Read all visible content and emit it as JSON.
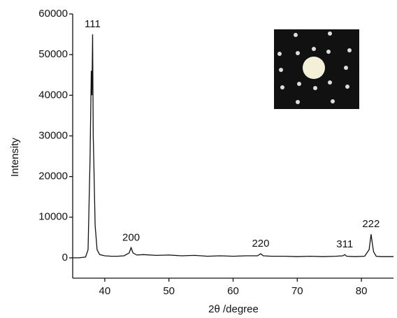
{
  "chart_data": {
    "type": "line",
    "x_label": "2θ /degree",
    "y_label": "Intensity",
    "xlim": [
      35,
      85
    ],
    "ylim": [
      -5000,
      60000
    ],
    "xticks": [
      40,
      50,
      60,
      70,
      80
    ],
    "yticks": [
      0,
      10000,
      20000,
      30000,
      40000,
      50000,
      60000
    ],
    "grid": false,
    "color": "#111111",
    "x": [
      35,
      36,
      37,
      37.4,
      37.7,
      37.9,
      38.0,
      38.1,
      38.2,
      38.3,
      38.5,
      38.8,
      39.2,
      40,
      41,
      42,
      43,
      43.8,
      44.1,
      44.4,
      45,
      46,
      48,
      50,
      52,
      54,
      56,
      58,
      60,
      62,
      63.8,
      64.3,
      64.7,
      66,
      68,
      70,
      72,
      74,
      76,
      77.1,
      77.4,
      77.7,
      79,
      80.5,
      81.2,
      81.5,
      81.7,
      81.9,
      82.3,
      83,
      84,
      85
    ],
    "values": [
      0,
      0,
      200,
      2000,
      24000,
      46000,
      40000,
      55000,
      30000,
      23000,
      8000,
      2000,
      800,
      500,
      400,
      400,
      500,
      1200,
      2500,
      1200,
      700,
      800,
      600,
      700,
      500,
      600,
      400,
      500,
      400,
      500,
      500,
      1000,
      500,
      400,
      400,
      300,
      400,
      300,
      400,
      500,
      800,
      400,
      300,
      400,
      2000,
      5800,
      3500,
      1500,
      400,
      300,
      300,
      300
    ],
    "annotations": [
      {
        "text": "111",
        "x": 38.1
      },
      {
        "text": "200",
        "x": 44.1
      },
      {
        "text": "220",
        "x": 64.3
      },
      {
        "text": "311",
        "x": 77.4
      },
      {
        "text": "222",
        "x": 81.5
      }
    ]
  }
}
